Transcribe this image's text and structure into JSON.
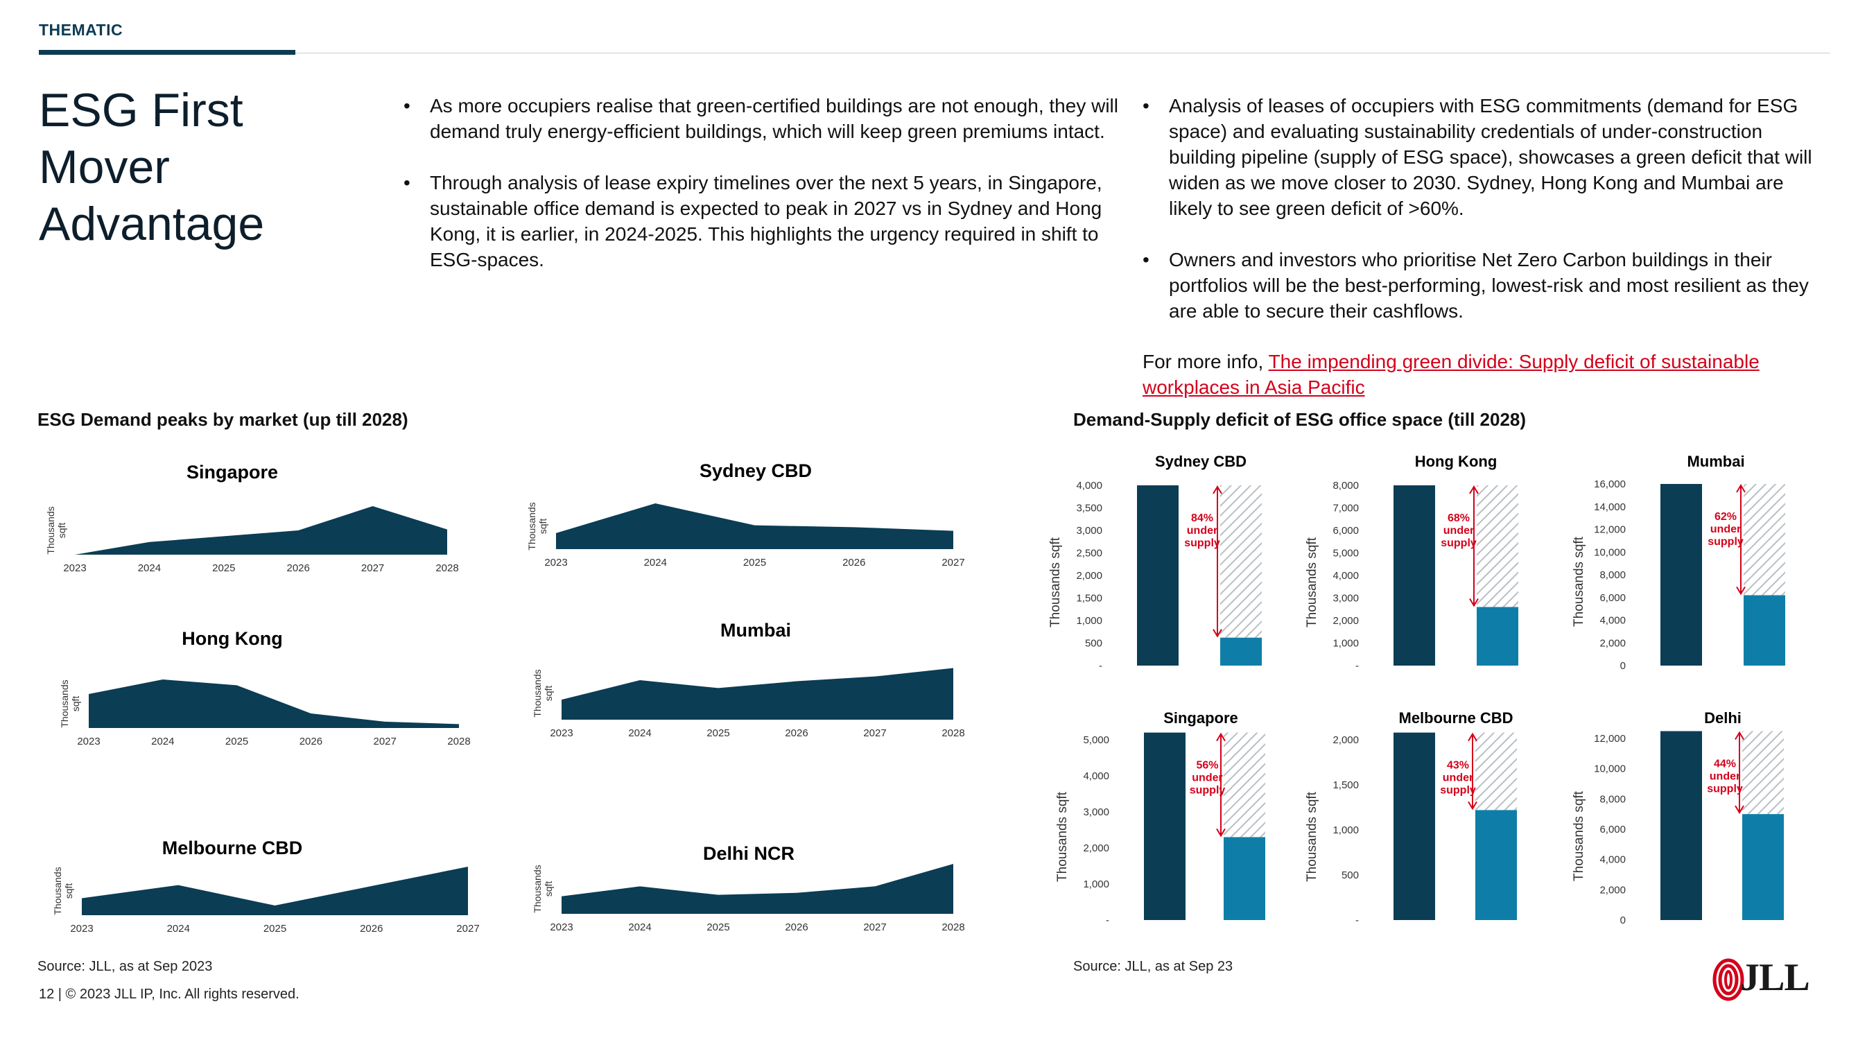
{
  "header": {
    "label": "THEMATIC"
  },
  "page_title": "ESG First Mover Advantage",
  "left_bullets": [
    "As more occupiers realise that green-certified buildings are not enough, they will demand truly energy-efficient buildings, which will keep green premiums intact.",
    "Through analysis of lease expiry timelines over the next 5 years, in Singapore, sustainable office demand is expected to peak in 2027 vs in Sydney and Hong Kong, it is earlier, in 2024-2025. This highlights the urgency required in shift to ESG-spaces."
  ],
  "right_bullets": [
    "Analysis of leases of occupiers with ESG commitments (demand for ESG space) and evaluating sustainability credentials of under-construction building pipeline (supply of ESG space), showcases a green deficit that will widen as we move closer to 2030. Sydney, Hong Kong and Mumbai are likely to see green deficit of >60%.",
    "Owners and investors who prioritise Net Zero Carbon buildings in their portfolios will be the best-performing, lowest-risk and most resilient as they are able to secure their cashflows."
  ],
  "more_info": {
    "prefix": "For more info, ",
    "link_text": "The impending green divide: Supply deficit of sustainable workplaces in Asia Pacific"
  },
  "left_section": {
    "title": "ESG Demand peaks by market (up till 2028)",
    "source": "Source: JLL, as at Sep 2023"
  },
  "right_section": {
    "title": "Demand-Supply deficit of ESG office space (till 2028)",
    "source": "Source: JLL, as at Sep 23"
  },
  "footer": {
    "text": "12 | © 2023 JLL IP, Inc. All rights reserved."
  },
  "logo": {
    "text": "JLL"
  },
  "colors": {
    "navy": "#0b3d55",
    "teal": "#0e7ea8",
    "red": "#d4001a"
  },
  "chart_data": [
    {
      "type": "area",
      "title": "Singapore",
      "ylabel": "Thousands sqft",
      "x": [
        "2023",
        "2024",
        "2025",
        "2026",
        "2027",
        "2028"
      ],
      "values": [
        0,
        0.26,
        0.38,
        0.5,
        1.0,
        0.52
      ]
    },
    {
      "type": "area",
      "title": "Sydney CBD",
      "ylabel": "Thousands sqft",
      "x": [
        "2023",
        "2024",
        "2025",
        "2026",
        "2027"
      ],
      "values": [
        0.35,
        1.0,
        0.52,
        0.48,
        0.4
      ]
    },
    {
      "type": "area",
      "title": "Hong Kong",
      "ylabel": "Thousands sqft",
      "x": [
        "2023",
        "2024",
        "2025",
        "2026",
        "2027",
        "2028"
      ],
      "values": [
        0.7,
        1.0,
        0.88,
        0.3,
        0.13,
        0.08
      ]
    },
    {
      "type": "area",
      "title": "Mumbai",
      "ylabel": "Thousands sqft",
      "x": [
        "2023",
        "2024",
        "2025",
        "2026",
        "2027",
        "2028"
      ],
      "values": [
        0.38,
        0.75,
        0.6,
        0.73,
        0.82,
        0.98
      ]
    },
    {
      "type": "area",
      "title": "Melbourne CBD",
      "ylabel": "Thousands sqft",
      "x": [
        "2023",
        "2024",
        "2025",
        "2026",
        "2027"
      ],
      "values": [
        0.35,
        0.62,
        0.2,
        0.6,
        1.0
      ]
    },
    {
      "type": "area",
      "title": "Delhi NCR",
      "ylabel": "Thousands sqft",
      "x": [
        "2023",
        "2024",
        "2025",
        "2026",
        "2027",
        "2028"
      ],
      "values": [
        0.35,
        0.55,
        0.38,
        0.42,
        0.55,
        1.0
      ]
    },
    {
      "type": "bar",
      "title": "Sydney CBD",
      "ylabel": "Thousands sqft",
      "yticks": [
        "-",
        "500",
        "1,000",
        "1,500",
        "2,000",
        "2,500",
        "3,000",
        "3,500",
        "4,000"
      ],
      "ylim": [
        0,
        4000
      ],
      "demand": 4000,
      "supply": 620,
      "deficit_label": [
        "84%",
        "under",
        "supply"
      ]
    },
    {
      "type": "bar",
      "title": "Hong Kong",
      "ylabel": "Thousands sqft",
      "yticks": [
        "-",
        "1,000",
        "2,000",
        "3,000",
        "4,000",
        "5,000",
        "6,000",
        "7,000",
        "8,000"
      ],
      "ylim": [
        0,
        8000
      ],
      "demand": 8000,
      "supply": 2600,
      "deficit_label": [
        "68%",
        "under",
        "supply"
      ]
    },
    {
      "type": "bar",
      "title": "Mumbai",
      "ylabel": "Thousands sqft",
      "yticks": [
        "0",
        "2,000",
        "4,000",
        "6,000",
        "8,000",
        "10,000",
        "12,000",
        "14,000",
        "16,000"
      ],
      "ylim": [
        0,
        16000
      ],
      "demand": 16000,
      "supply": 6200,
      "deficit_label": [
        "62%",
        "under",
        "supply"
      ]
    },
    {
      "type": "bar",
      "title": "Singapore",
      "ylabel": "Thousands sqft",
      "yticks": [
        "-",
        "1,000",
        "2,000",
        "3,000",
        "4,000",
        "5,000"
      ],
      "ylim": [
        0,
        5000
      ],
      "demand": 5200,
      "supply": 2300,
      "deficit_label": [
        "56%",
        "under",
        "supply"
      ]
    },
    {
      "type": "bar",
      "title": "Melbourne CBD",
      "ylabel": "Thousands sqft",
      "yticks": [
        "-",
        "500",
        "1,000",
        "1,500",
        "2,000"
      ],
      "ylim": [
        0,
        2000
      ],
      "demand": 2150,
      "supply": 1220,
      "deficit_label": [
        "43%",
        "under",
        "supply"
      ]
    },
    {
      "type": "bar",
      "title": "Delhi",
      "ylabel": "Thousands sqft",
      "yticks": [
        "0",
        "2,000",
        "4,000",
        "6,000",
        "8,000",
        "10,000",
        "12,000"
      ],
      "ylim": [
        0,
        12000
      ],
      "demand": 12500,
      "supply": 7000,
      "deficit_label": [
        "44%",
        "under",
        "supply"
      ]
    }
  ]
}
